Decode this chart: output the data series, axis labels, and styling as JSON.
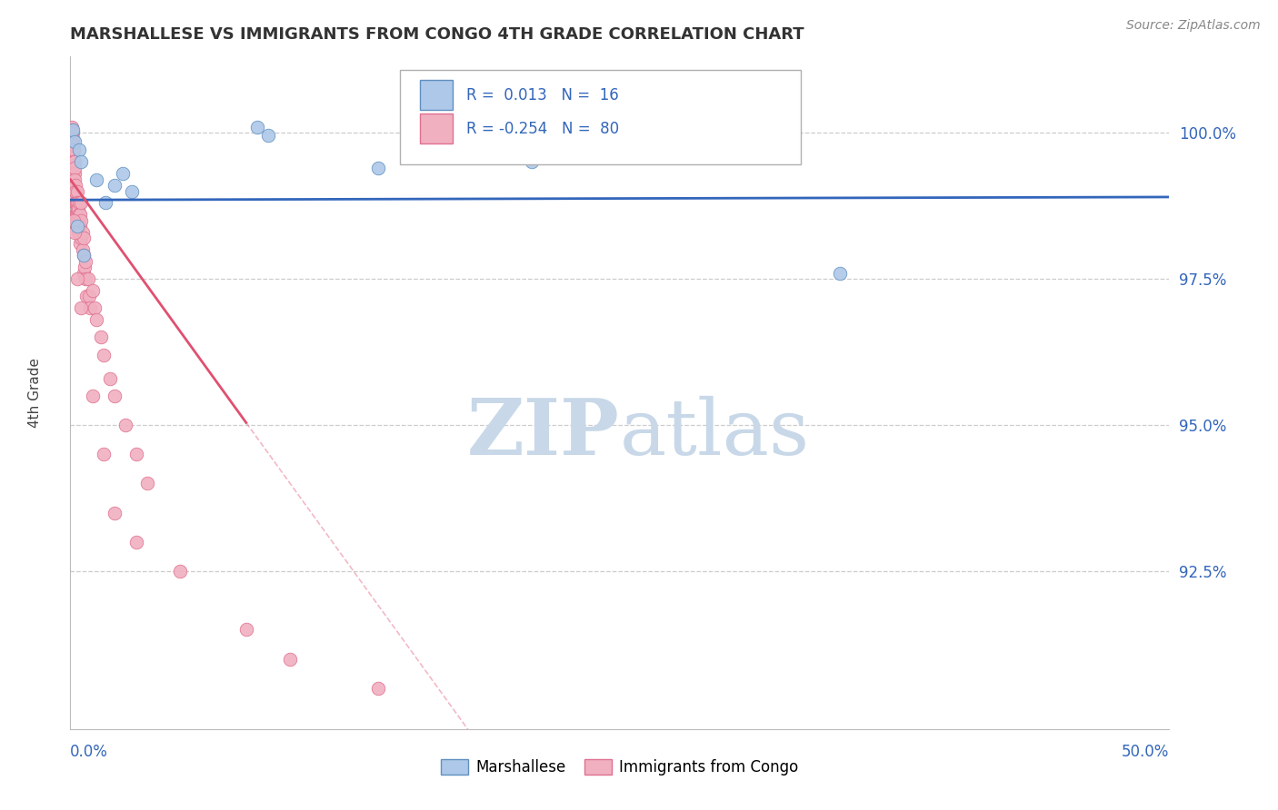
{
  "title": "MARSHALLESE VS IMMIGRANTS FROM CONGO 4TH GRADE CORRELATION CHART",
  "source_text": "Source: ZipAtlas.com",
  "ylabel": "4th Grade",
  "xmin": 0.0,
  "xmax": 50.0,
  "ymin": 89.8,
  "ymax": 101.3,
  "blue_R": 0.013,
  "blue_N": 16,
  "pink_R": -0.254,
  "pink_N": 80,
  "blue_dot_color": "#adc8e8",
  "blue_edge_color": "#6090c0",
  "blue_line_color": "#3366bb",
  "pink_dot_color": "#f0b0c0",
  "pink_edge_color": "#e07090",
  "pink_line_color": "#e05070",
  "watermark_color": "#c8d8e8",
  "legend_label_blue": "Marshallese",
  "legend_label_pink": "Immigrants from Congo",
  "ytick_vals": [
    92.5,
    95.0,
    97.5,
    100.0
  ],
  "ytick_labels": [
    "92.5%",
    "95.0%",
    "97.5%",
    "100.0%"
  ],
  "legend_text_color": "#3366bb",
  "blue_line_y_intercept": 98.85,
  "blue_line_slope": 0.001,
  "pink_line_y_intercept": 99.2,
  "pink_line_slope": -0.52,
  "blue_x": [
    0.1,
    0.2,
    0.4,
    0.5,
    1.2,
    1.6,
    2.0,
    2.4,
    2.8,
    8.5,
    9.0,
    14.0,
    0.3,
    0.6,
    21.0,
    35.0
  ],
  "blue_y": [
    100.05,
    99.85,
    99.7,
    99.5,
    99.2,
    98.8,
    99.1,
    99.3,
    99.0,
    100.1,
    99.95,
    99.4,
    98.4,
    97.9,
    99.5,
    97.6
  ],
  "pink_x": [
    0.05,
    0.05,
    0.08,
    0.08,
    0.1,
    0.1,
    0.1,
    0.12,
    0.12,
    0.15,
    0.15,
    0.15,
    0.18,
    0.18,
    0.2,
    0.2,
    0.2,
    0.2,
    0.22,
    0.22,
    0.25,
    0.25,
    0.25,
    0.28,
    0.28,
    0.3,
    0.3,
    0.3,
    0.3,
    0.32,
    0.32,
    0.35,
    0.35,
    0.35,
    0.38,
    0.38,
    0.4,
    0.4,
    0.4,
    0.42,
    0.45,
    0.45,
    0.45,
    0.5,
    0.5,
    0.5,
    0.55,
    0.55,
    0.6,
    0.6,
    0.6,
    0.65,
    0.7,
    0.7,
    0.75,
    0.8,
    0.85,
    0.9,
    1.0,
    1.1,
    1.2,
    1.4,
    1.5,
    1.8,
    2.0,
    2.5,
    3.0,
    3.5,
    0.15,
    0.2,
    0.3,
    0.5,
    1.0,
    1.5,
    2.0,
    3.0,
    5.0,
    8.0,
    10.0,
    14.0
  ],
  "pink_y": [
    100.1,
    100.0,
    100.05,
    99.95,
    100.0,
    99.9,
    99.7,
    99.8,
    99.6,
    99.7,
    99.5,
    99.3,
    99.5,
    99.3,
    99.4,
    99.2,
    99.0,
    98.8,
    99.1,
    98.9,
    99.0,
    98.8,
    98.6,
    98.8,
    98.6,
    99.0,
    98.8,
    98.6,
    98.4,
    98.7,
    98.5,
    98.7,
    98.5,
    98.3,
    98.5,
    98.3,
    98.8,
    98.6,
    98.3,
    98.4,
    98.6,
    98.4,
    98.1,
    98.8,
    98.5,
    98.2,
    98.3,
    98.0,
    98.2,
    97.9,
    97.6,
    97.7,
    97.8,
    97.5,
    97.2,
    97.5,
    97.2,
    97.0,
    97.3,
    97.0,
    96.8,
    96.5,
    96.2,
    95.8,
    95.5,
    95.0,
    94.5,
    94.0,
    98.5,
    98.3,
    97.5,
    97.0,
    95.5,
    94.5,
    93.5,
    93.0,
    92.5,
    91.5,
    91.0,
    90.5
  ]
}
